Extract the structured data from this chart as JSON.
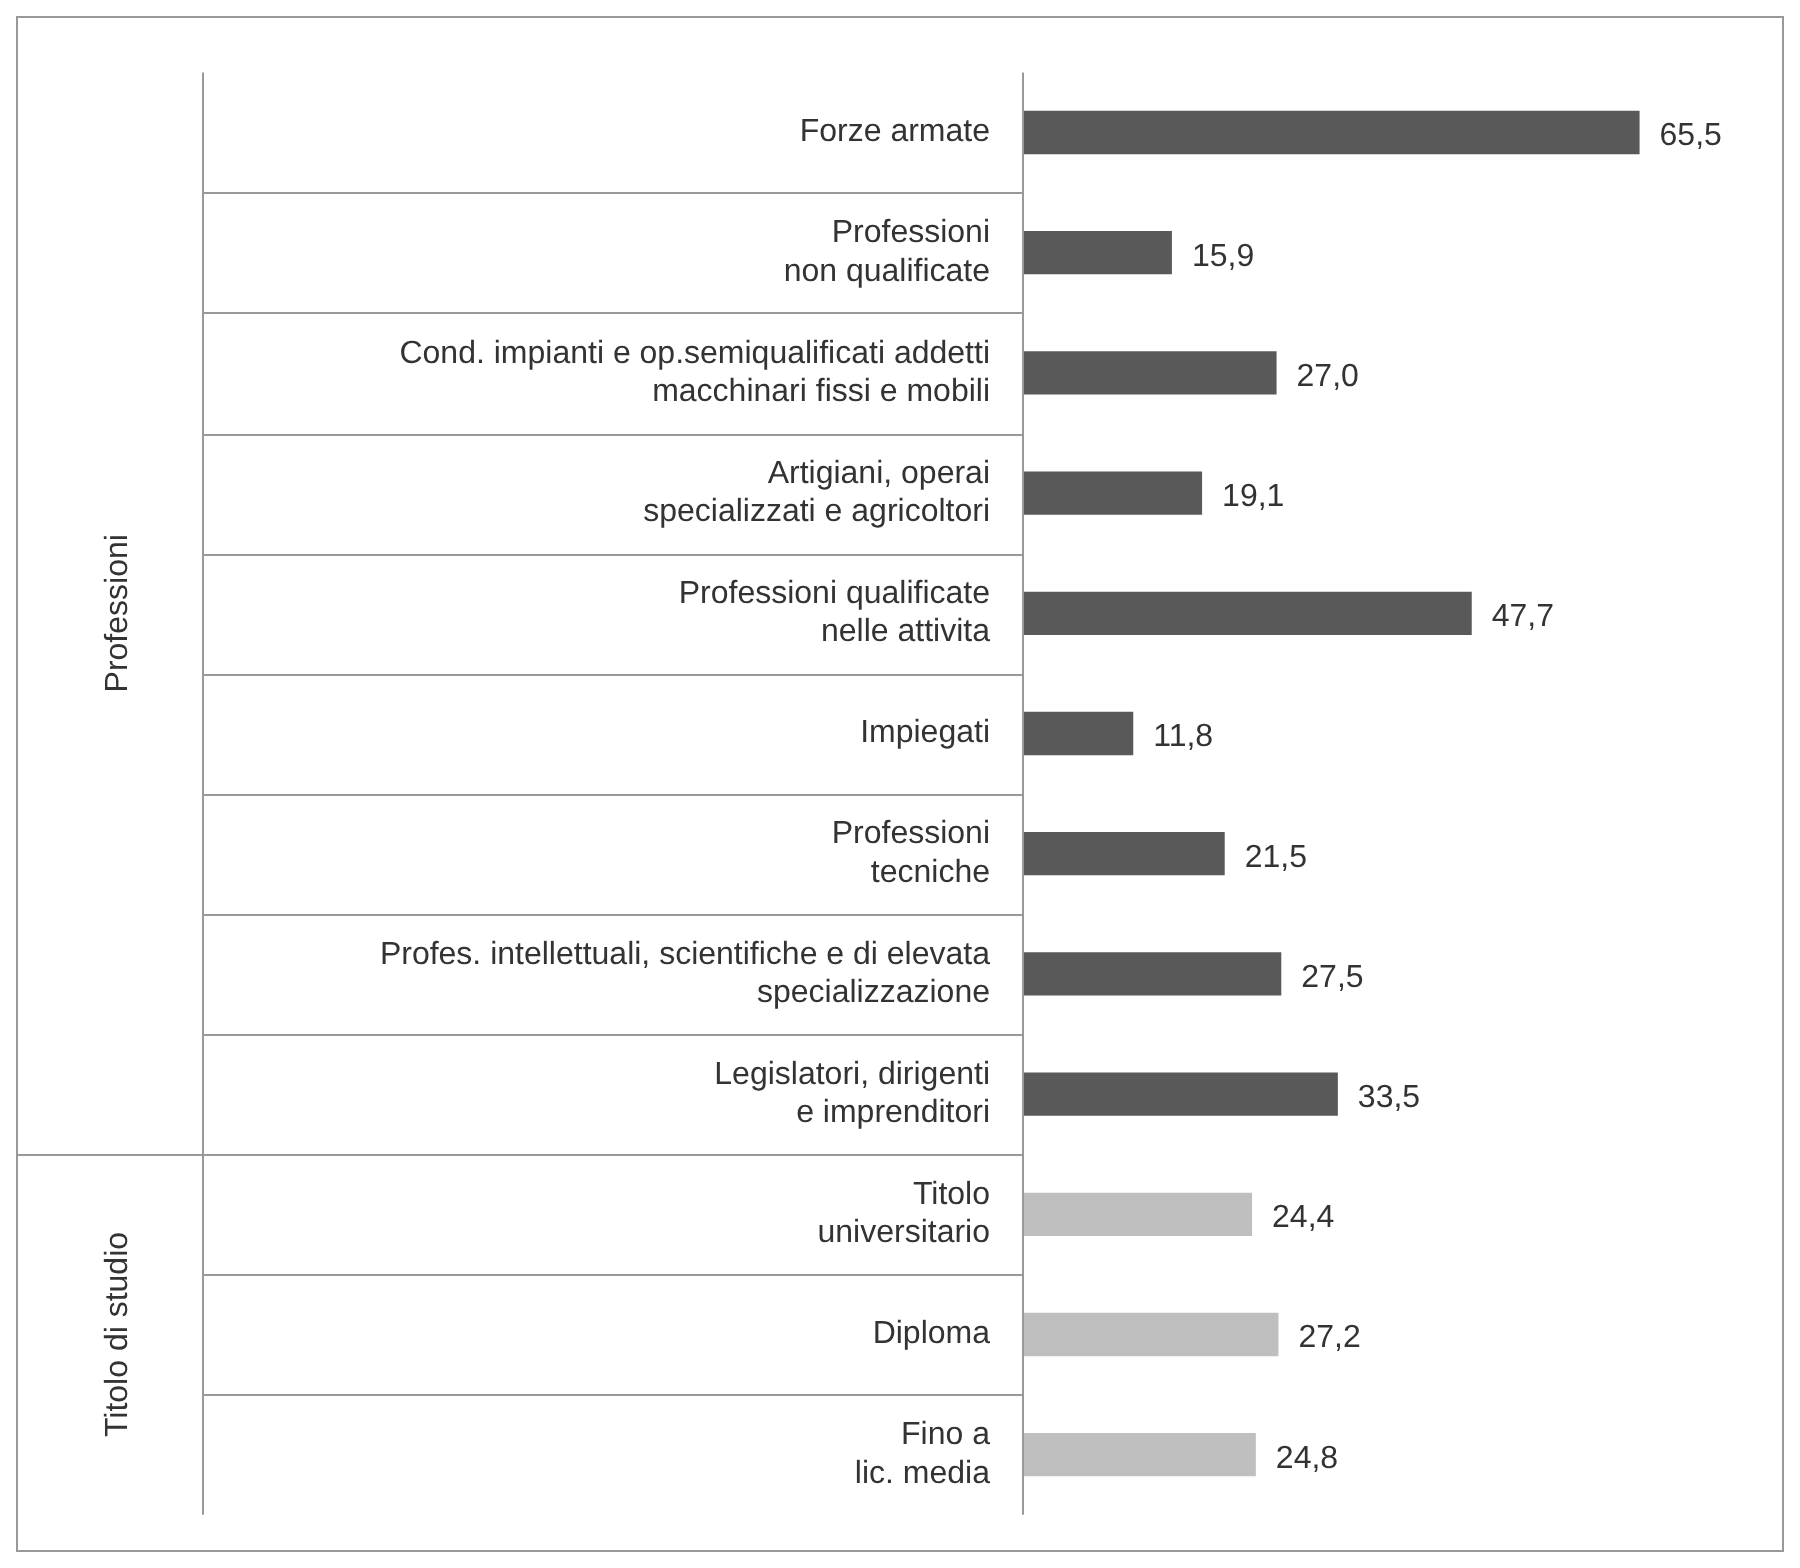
{
  "chart_data": {
    "type": "bar",
    "orientation": "horizontal",
    "categories": [
      "Forze armate",
      "Professioni\nnon qualificate",
      "Cond. impianti e op.semiqualificati addetti\nmacchinari fissi e mobili",
      "Artigiani, operai\nspecializzati e agricoltori",
      "Professioni qualificate\nnelle attivita",
      "Impiegati",
      "Professioni\ntecniche",
      "Profes. intellettuali, scientifiche e di elevata\nspecializzazione",
      "Legislatori, dirigenti\ne imprenditori",
      "Titolo\nuniversitario",
      "Diploma",
      "Fino a\nlic. media"
    ],
    "series": [
      {
        "color": "#595959",
        "values": [
          65.5,
          15.9,
          27.0,
          19.1,
          47.7,
          11.8,
          21.5,
          27.5,
          33.5,
          null,
          null,
          null
        ],
        "value_labels": [
          "65,5",
          "15,9",
          "27,0",
          "19,1",
          "47,7",
          "11,8",
          "21,5",
          "27,5",
          "33,5",
          null,
          null,
          null
        ]
      },
      {
        "color": "#bfbfbf",
        "values": [
          null,
          null,
          null,
          null,
          null,
          null,
          null,
          null,
          null,
          24.4,
          27.2,
          24.8
        ],
        "value_labels": [
          null,
          null,
          null,
          null,
          null,
          null,
          null,
          null,
          null,
          "24,4",
          "27,2",
          "24,8"
        ]
      }
    ],
    "annotations": [
      "Professioni",
      "Titolo di studio"
    ]
  }
}
